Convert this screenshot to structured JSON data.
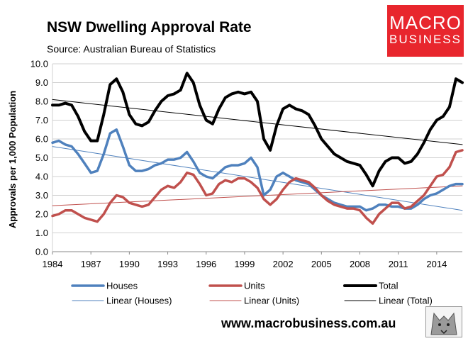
{
  "header": {
    "title": "NSW Dwelling Approval Rate",
    "source": "Source: Australian Bureau of Statistics"
  },
  "brand": {
    "logo_line1": "MACRO",
    "logo_line2": "BUSINESS",
    "website": "www.macrobusiness.com.au",
    "accent": "#e8262d"
  },
  "chart_data": {
    "type": "line",
    "ylabel": "Approvals per 1,000 Population",
    "xlim": [
      1984,
      2016
    ],
    "ylim": [
      0,
      10
    ],
    "ytick_labels": [
      "0.0",
      "1.0",
      "2.0",
      "3.0",
      "4.0",
      "5.0",
      "6.0",
      "7.0",
      "8.0",
      "9.0",
      "10.0"
    ],
    "xtick_labels": [
      "1984",
      "1987",
      "1990",
      "1993",
      "1996",
      "1999",
      "2002",
      "2005",
      "2008",
      "2011",
      "2014"
    ],
    "grid": true,
    "legend_position": "bottom",
    "series": [
      {
        "name": "Houses",
        "color": "#4f81bd",
        "width": 3.5,
        "x": [
          1984,
          1984.5,
          1985,
          1985.5,
          1986,
          1986.5,
          1987,
          1987.5,
          1988,
          1988.5,
          1989,
          1989.5,
          1990,
          1990.5,
          1991,
          1991.5,
          1992,
          1992.5,
          1993,
          1993.5,
          1994,
          1994.5,
          1995,
          1995.5,
          1996,
          1996.5,
          1997,
          1997.5,
          1998,
          1998.5,
          1999,
          1999.5,
          2000,
          2000.5,
          2001,
          2001.5,
          2002,
          2002.5,
          2003,
          2003.5,
          2004,
          2004.5,
          2005,
          2005.5,
          2006,
          2006.5,
          2007,
          2007.5,
          2008,
          2008.5,
          2009,
          2009.5,
          2010,
          2010.5,
          2011,
          2011.5,
          2012,
          2012.5,
          2013,
          2013.5,
          2014,
          2014.5,
          2015,
          2015.5,
          2016
        ],
        "y": [
          5.8,
          5.9,
          5.7,
          5.6,
          5.2,
          4.7,
          4.2,
          4.3,
          5.2,
          6.3,
          6.5,
          5.6,
          4.6,
          4.3,
          4.3,
          4.4,
          4.6,
          4.7,
          4.9,
          4.9,
          5.0,
          5.3,
          4.8,
          4.2,
          4.0,
          3.9,
          4.2,
          4.5,
          4.6,
          4.6,
          4.7,
          5.0,
          4.5,
          3.0,
          3.3,
          4.0,
          4.2,
          4.0,
          3.8,
          3.7,
          3.6,
          3.3,
          3.0,
          2.8,
          2.6,
          2.5,
          2.4,
          2.4,
          2.4,
          2.2,
          2.3,
          2.5,
          2.5,
          2.4,
          2.4,
          2.3,
          2.3,
          2.5,
          2.8,
          3.0,
          3.1,
          3.3,
          3.5,
          3.6,
          3.6
        ]
      },
      {
        "name": "Units",
        "color": "#c0504d",
        "width": 3.5,
        "x": [
          1984,
          1984.5,
          1985,
          1985.5,
          1986,
          1986.5,
          1987,
          1987.5,
          1988,
          1988.5,
          1989,
          1989.5,
          1990,
          1990.5,
          1991,
          1991.5,
          1992,
          1992.5,
          1993,
          1993.5,
          1994,
          1994.5,
          1995,
          1995.5,
          1996,
          1996.5,
          1997,
          1997.5,
          1998,
          1998.5,
          1999,
          1999.5,
          2000,
          2000.5,
          2001,
          2001.5,
          2002,
          2002.5,
          2003,
          2003.5,
          2004,
          2004.5,
          2005,
          2005.5,
          2006,
          2006.5,
          2007,
          2007.5,
          2008,
          2008.5,
          2009,
          2009.5,
          2010,
          2010.5,
          2011,
          2011.5,
          2012,
          2012.5,
          2013,
          2013.5,
          2014,
          2014.5,
          2015,
          2015.5,
          2016
        ],
        "y": [
          1.9,
          2.0,
          2.2,
          2.2,
          2.0,
          1.8,
          1.7,
          1.6,
          2.0,
          2.6,
          3.0,
          2.9,
          2.6,
          2.5,
          2.4,
          2.5,
          2.9,
          3.3,
          3.5,
          3.4,
          3.7,
          4.2,
          4.1,
          3.6,
          3.0,
          3.1,
          3.6,
          3.8,
          3.7,
          3.9,
          3.9,
          3.7,
          3.4,
          2.8,
          2.5,
          2.8,
          3.3,
          3.7,
          3.9,
          3.8,
          3.7,
          3.4,
          3.0,
          2.7,
          2.5,
          2.4,
          2.3,
          2.3,
          2.2,
          1.8,
          1.5,
          2.0,
          2.3,
          2.6,
          2.6,
          2.3,
          2.4,
          2.7,
          3.0,
          3.5,
          4.0,
          4.1,
          4.5,
          5.3,
          5.4
        ]
      },
      {
        "name": "Total",
        "color": "#000000",
        "width": 4,
        "x": [
          1984,
          1984.5,
          1985,
          1985.5,
          1986,
          1986.5,
          1987,
          1987.5,
          1988,
          1988.5,
          1989,
          1989.5,
          1990,
          1990.5,
          1991,
          1991.5,
          1992,
          1992.5,
          1993,
          1993.5,
          1994,
          1994.5,
          1995,
          1995.5,
          1996,
          1996.5,
          1997,
          1997.5,
          1998,
          1998.5,
          1999,
          1999.5,
          2000,
          2000.5,
          2001,
          2001.5,
          2002,
          2002.5,
          2003,
          2003.5,
          2004,
          2004.5,
          2005,
          2005.5,
          2006,
          2006.5,
          2007,
          2007.5,
          2008,
          2008.5,
          2009,
          2009.5,
          2010,
          2010.5,
          2011,
          2011.5,
          2012,
          2012.5,
          2013,
          2013.5,
          2014,
          2014.5,
          2015,
          2015.5,
          2016
        ],
        "y": [
          7.8,
          7.8,
          7.9,
          7.8,
          7.2,
          6.4,
          5.9,
          5.9,
          7.3,
          8.9,
          9.2,
          8.5,
          7.3,
          6.8,
          6.7,
          6.9,
          7.5,
          8.0,
          8.3,
          8.4,
          8.6,
          9.5,
          9.0,
          7.8,
          7.0,
          6.8,
          7.6,
          8.2,
          8.4,
          8.5,
          8.4,
          8.5,
          8.0,
          6.0,
          5.4,
          6.7,
          7.6,
          7.8,
          7.6,
          7.5,
          7.3,
          6.7,
          6.0,
          5.6,
          5.2,
          5.0,
          4.8,
          4.7,
          4.6,
          4.1,
          3.5,
          4.3,
          4.8,
          5.0,
          5.0,
          4.7,
          4.8,
          5.2,
          5.8,
          6.5,
          7.0,
          7.2,
          7.7,
          9.2,
          9.0
        ]
      },
      {
        "name": "Linear (Houses)",
        "color": "#4f81bd",
        "width": 1,
        "x": [
          1984,
          2016
        ],
        "y": [
          5.6,
          2.2
        ]
      },
      {
        "name": "Linear (Units)",
        "color": "#c0504d",
        "width": 1,
        "x": [
          1984,
          2016
        ],
        "y": [
          2.45,
          3.5
        ]
      },
      {
        "name": "Linear (Total)",
        "color": "#000000",
        "width": 1,
        "x": [
          1984,
          2016
        ],
        "y": [
          8.1,
          5.7
        ]
      }
    ]
  }
}
